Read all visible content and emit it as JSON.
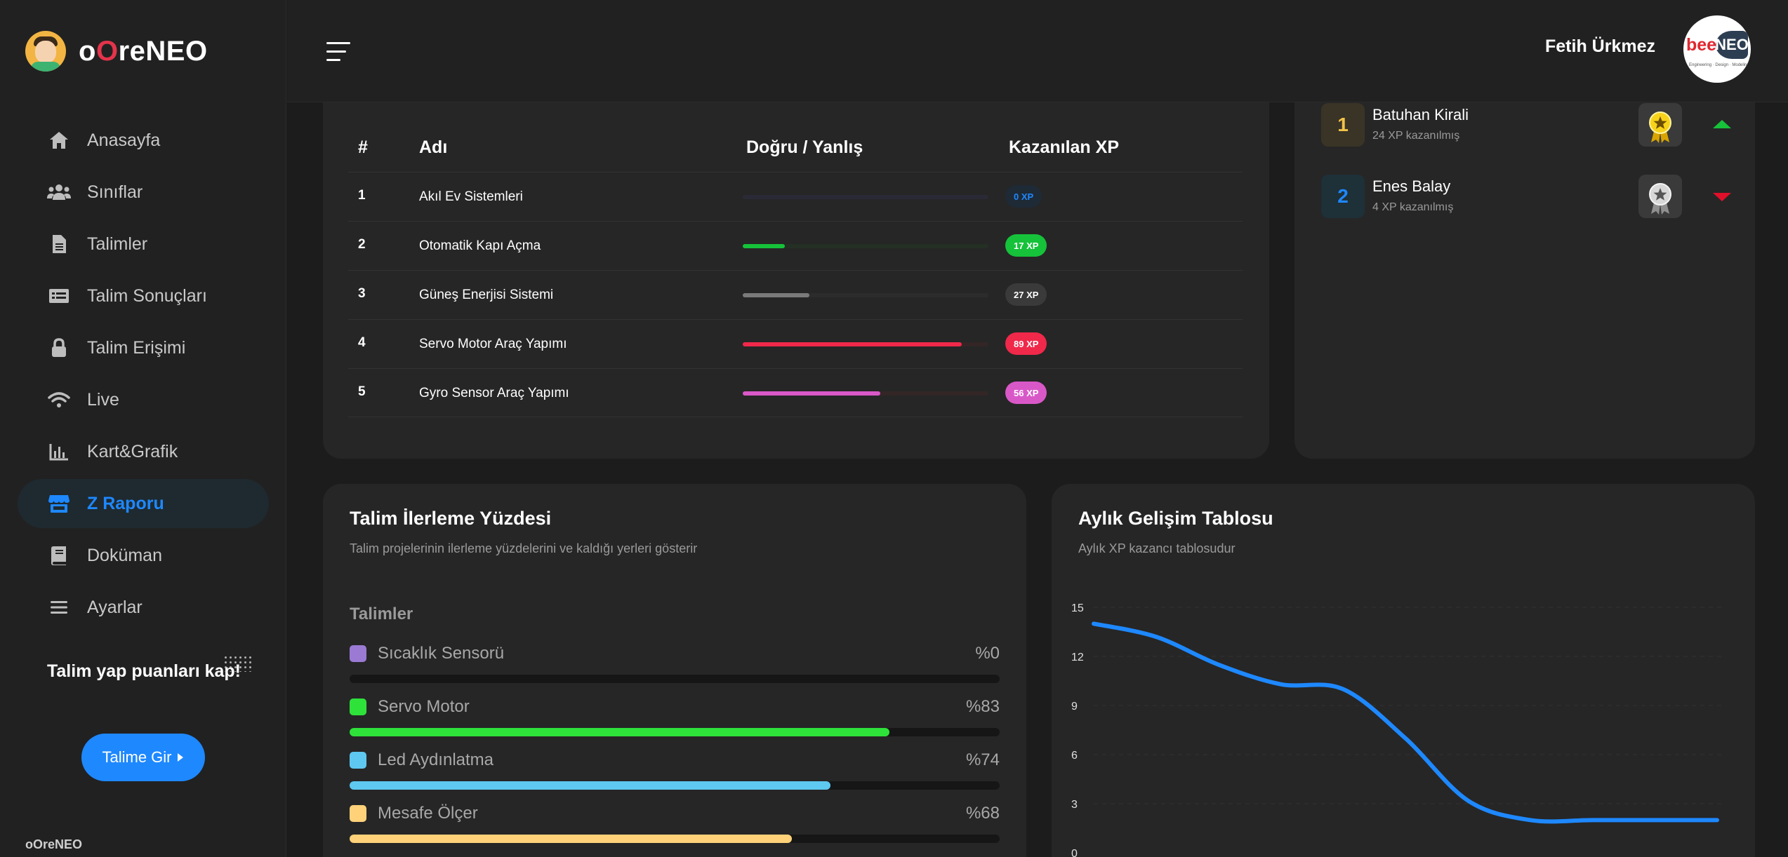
{
  "brand": {
    "part1": "o",
    "part2": "O",
    "part3": "reNEO"
  },
  "sidebar": {
    "items": [
      {
        "label": "Anasayfa",
        "icon": "home-icon"
      },
      {
        "label": "Sınıflar",
        "icon": "users-icon"
      },
      {
        "label": "Talimler",
        "icon": "document-icon"
      },
      {
        "label": "Talim Sonuçları",
        "icon": "results-icon"
      },
      {
        "label": "Talim Erişimi",
        "icon": "lock-icon"
      },
      {
        "label": "Live",
        "icon": "wifi-icon"
      },
      {
        "label": "Kart&Grafik",
        "icon": "chart-icon"
      },
      {
        "label": "Z Raporu",
        "icon": "store-icon"
      },
      {
        "label": "Doküman",
        "icon": "book-icon"
      },
      {
        "label": "Ayarlar",
        "icon": "menu-icon"
      }
    ],
    "active": "Z Raporu",
    "promo_text": "Talim yap puanları kap!",
    "promo_button": "Talime Gir",
    "footer": "oOreNEO"
  },
  "header": {
    "username": "Fetih Ürkmez",
    "avatar": {
      "part1": "bee",
      "part2": "NEO",
      "tagline": "Engineering · Design · Modeling"
    }
  },
  "talim_table": {
    "columns": [
      "#",
      "Adı",
      "Doğru / Yanlış",
      "Kazanılan XP"
    ],
    "rows": [
      {
        "num": "1",
        "name": "Akıl Ev Sistemleri",
        "progress": 0,
        "xp": "0 XP",
        "color": "#1e88ff",
        "track": "#2a2a36",
        "xp_bg": "#1e2a36",
        "xp_fg": "#1e88ff"
      },
      {
        "num": "2",
        "name": "Otomatik Kapı Açma",
        "progress": 17,
        "xp": "17 XP",
        "color": "#16c23a",
        "track": "#233023",
        "xp_bg": "#16c23a",
        "xp_fg": "#ffffff"
      },
      {
        "num": "3",
        "name": "Güneş Enerjisi Sistemi",
        "progress": 27,
        "xp": "27 XP",
        "color": "#7a7a7a",
        "track": "#2c2c2c",
        "xp_bg": "#3a3a3a",
        "xp_fg": "#ffffff"
      },
      {
        "num": "4",
        "name": "Servo Motor Araç Yapımı",
        "progress": 89,
        "xp": "89 XP",
        "color": "#f0284a",
        "track": "#342626",
        "xp_bg": "#f0284a",
        "xp_fg": "#ffffff"
      },
      {
        "num": "5",
        "name": "Gyro Sensor Araç Yapımı",
        "progress": 56,
        "xp": "56 XP",
        "color": "#d958c8",
        "track": "#342626",
        "xp_bg": "#d958c8",
        "xp_fg": "#ffffff"
      }
    ]
  },
  "ranking": [
    {
      "rank": "1",
      "name": "Batuhan Kirali",
      "score": "24 XP kazanılmış",
      "badge_bg": "#3a3426",
      "badge_fg": "#f2c34a",
      "medal": "gold-medal-icon",
      "trend": "up",
      "trend_color": "#16c23a"
    },
    {
      "rank": "2",
      "name": "Enes Balay",
      "score": "4 XP kazanılmış",
      "badge_bg": "#1e3038",
      "badge_fg": "#1e88ff",
      "medal": "silver-medal-icon",
      "trend": "down",
      "trend_color": "#e0102a"
    }
  ],
  "progress_card": {
    "title": "Talim İlerleme Yüzdesi",
    "subtitle": "Talim projelerinin ilerleme yüzdelerini ve kaldığı yerleri gösterir",
    "heading": "Talimler",
    "items": [
      {
        "label": "Sıcaklık Sensorü",
        "value": "%0",
        "percent": 0,
        "color": "#9b7ad4"
      },
      {
        "label": "Servo Motor",
        "value": "%83",
        "percent": 83,
        "color": "#2ee23a"
      },
      {
        "label": "Led Aydınlatma",
        "value": "%74",
        "percent": 74,
        "color": "#5ec8f0"
      },
      {
        "label": "Mesafe Ölçer",
        "value": "%68",
        "percent": 68,
        "color": "#ffd27a"
      }
    ]
  },
  "chart_card": {
    "title": "Aylık Gelişim Tablosu",
    "subtitle": "Aylık XP kazancı tablosudur"
  },
  "chart_data": {
    "type": "line",
    "title": "Aylık Gelişim Tablosu",
    "xlabel": "",
    "ylabel": "",
    "ylim": [
      0,
      15
    ],
    "yticks": [
      "15",
      "12",
      "9",
      "6",
      "3",
      "0"
    ],
    "series": [
      {
        "values": [
          14,
          13.2,
          11.5,
          10.3,
          10,
          7,
          3.2,
          2,
          2,
          2,
          2
        ]
      }
    ],
    "color": "#1e88ff",
    "grid": true
  }
}
